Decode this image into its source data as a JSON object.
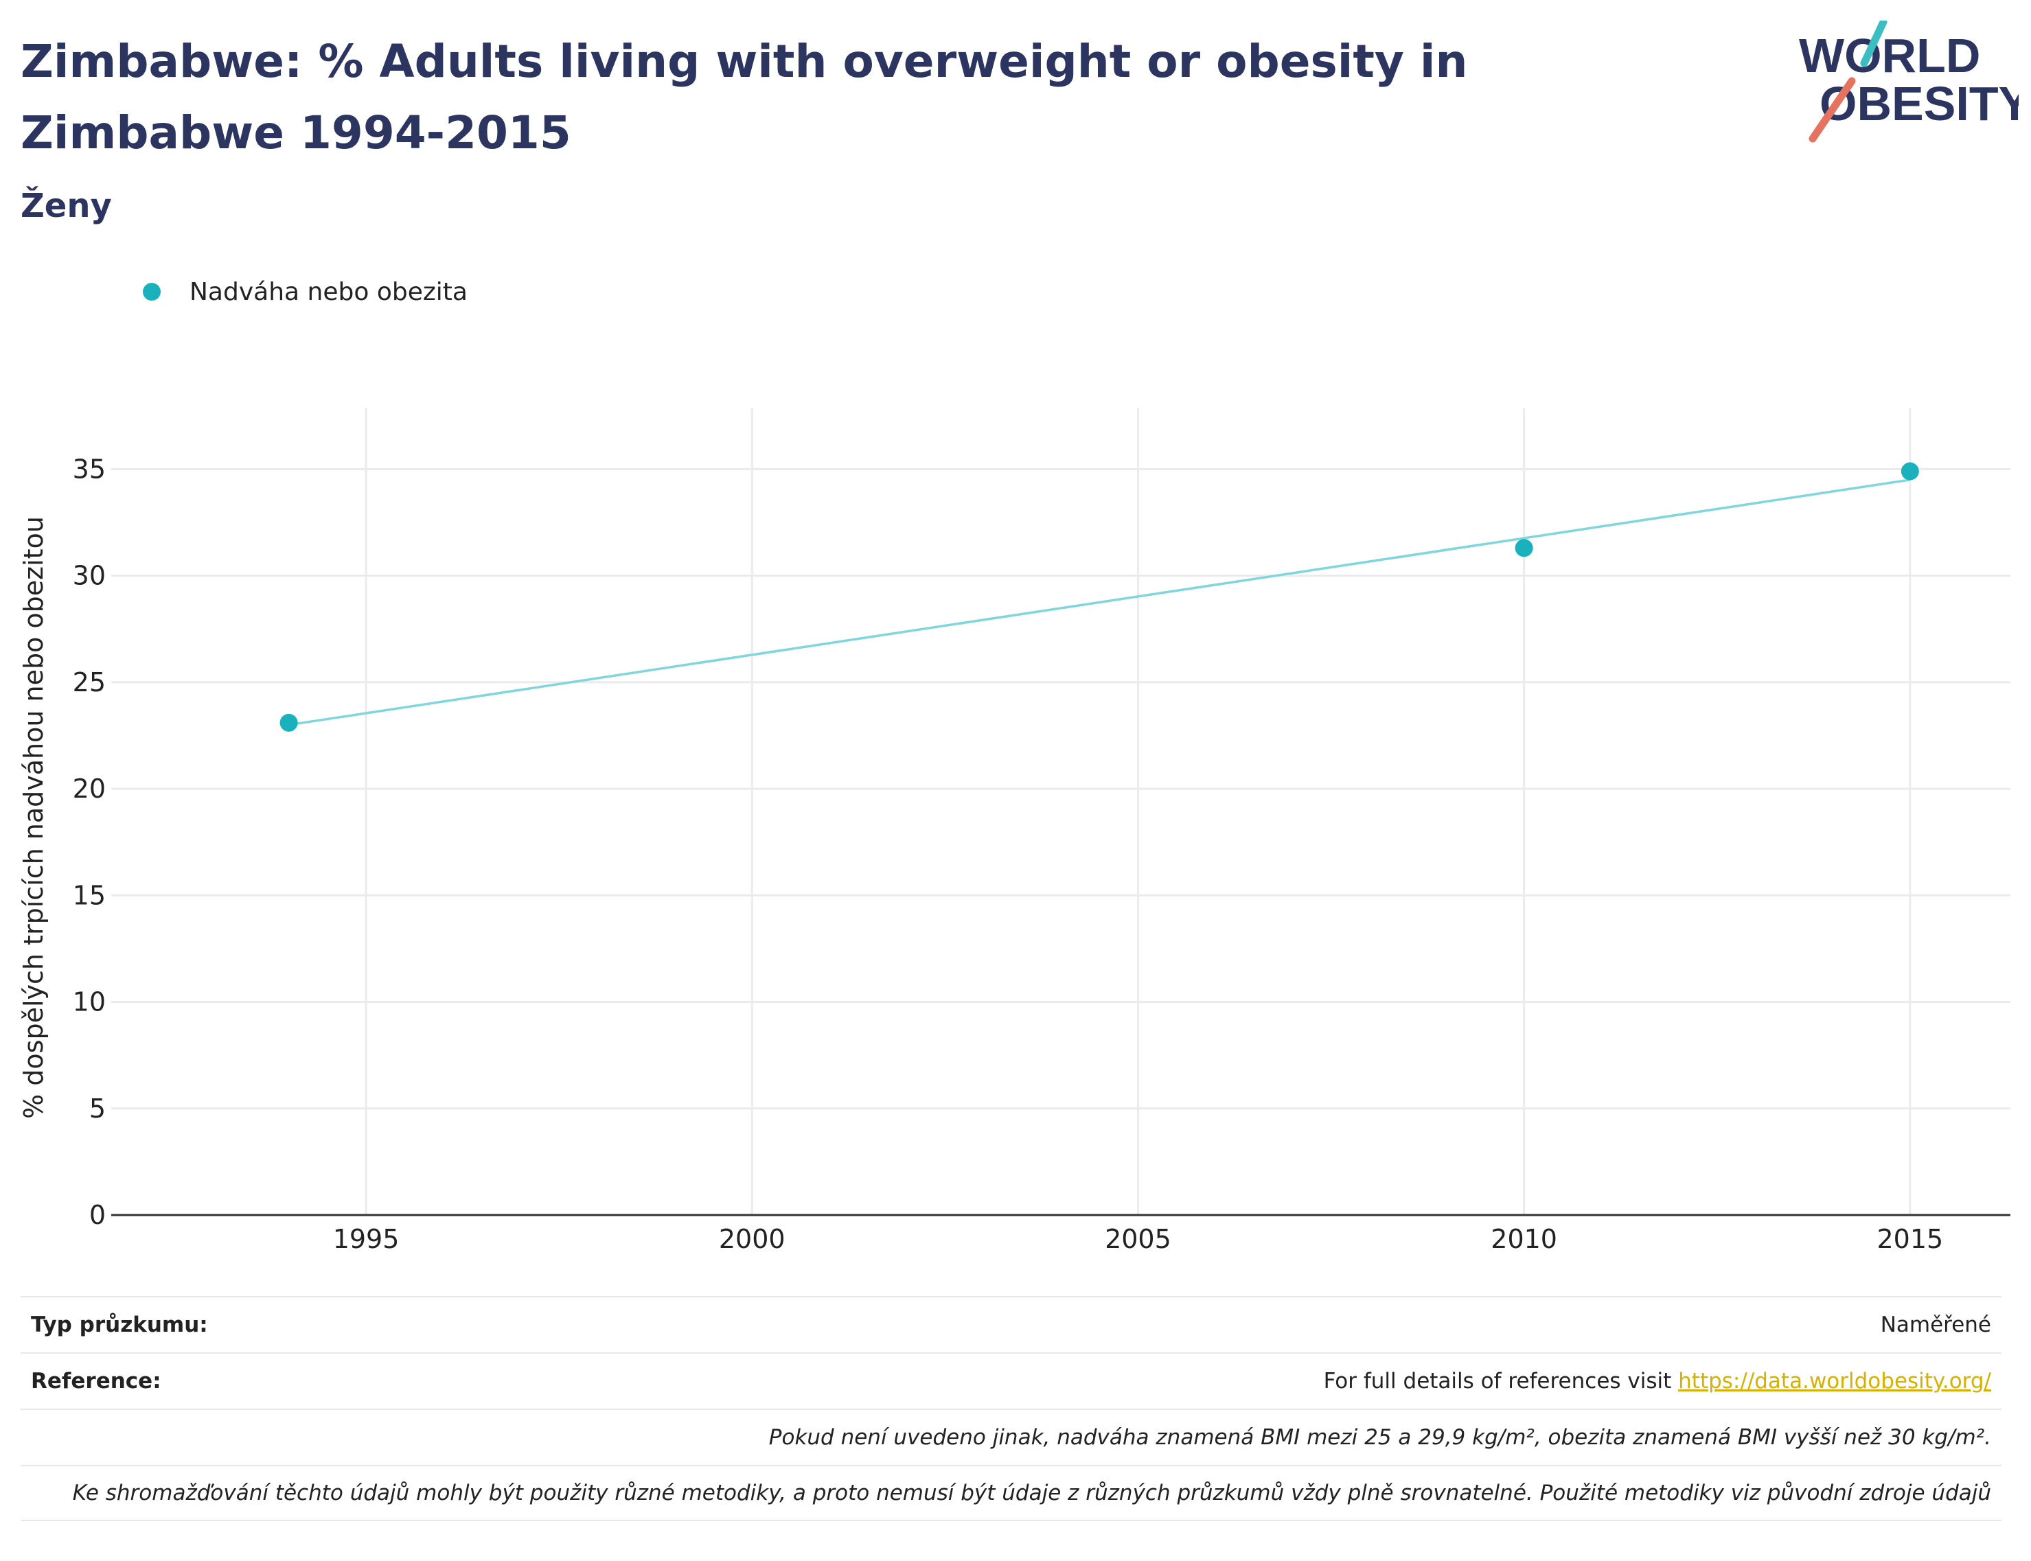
{
  "header": {
    "title": "Zimbabwe: % Adults living with overweight or obesity in Zimbabwe 1994-2015",
    "subtitle": "Ženy"
  },
  "logo": {
    "line1": "WORLD",
    "line2": "OBESITY",
    "colors": {
      "text": "#2b3560",
      "teal": "#3bbdc1",
      "coral": "#e5735f"
    }
  },
  "legend": {
    "label": "Nadváha nebo obezita"
  },
  "chart_data": {
    "type": "scatter",
    "title": "Zimbabwe: % Adults living with overweight or obesity in Zimbabwe 1994-2015",
    "subtitle": "Ženy",
    "xlabel": "",
    "ylabel": "% dospělých trpících nadváhou nebo obezitou",
    "xlim": [
      1991.7,
      2016.3
    ],
    "ylim": [
      0,
      37.3
    ],
    "x_ticks": [
      1995,
      2000,
      2005,
      2010,
      2015
    ],
    "y_ticks": [
      0,
      5,
      10,
      15,
      20,
      25,
      30,
      35
    ],
    "grid": true,
    "legend_position": "top-left",
    "series": [
      {
        "name": "Nadváha nebo obezita",
        "color": "#19b1bc",
        "x": [
          1994,
          2010,
          2015
        ],
        "y": [
          23.1,
          31.3,
          34.9
        ]
      }
    ],
    "trendline": {
      "color": "#7fd6db",
      "x": [
        1994,
        2015
      ],
      "y": [
        23.0,
        34.5
      ]
    }
  },
  "footer": {
    "survey_label": "Typ průzkumu:",
    "survey_value": "Naměřené",
    "reference_label": "Reference:",
    "reference_text": "For full details of references visit ",
    "reference_link": "https://data.worldobesity.org/",
    "note1": "Pokud není uvedeno jinak, nadváha znamená BMI mezi 25 a 29,9 kg/m², obezita znamená BMI vyšší než 30 kg/m².",
    "note2": "Ke shromažďování těchto údajů mohly být použity různé metodiky, a proto nemusí být údaje z různých průzkumů vždy plně srovnatelné. Použité metodiky viz původní zdroje údajů"
  }
}
